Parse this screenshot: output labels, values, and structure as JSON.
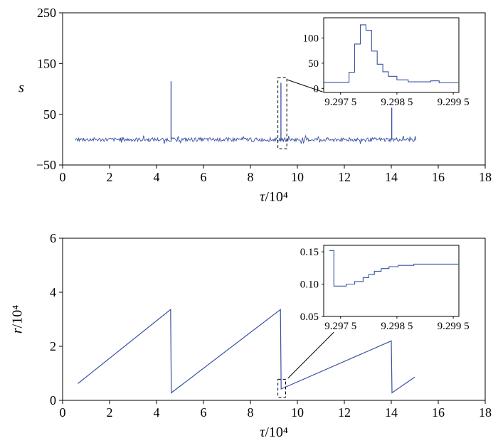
{
  "figure": {
    "background": "#ffffff",
    "line_color": "#3952a3",
    "axis_color": "#000000",
    "annotation_color": "#000000"
  },
  "chart_data": [
    {
      "id": "top-panel",
      "type": "line",
      "title": "",
      "xlabel_var": "τ",
      "xlabel_rest": "/10⁴",
      "ylabel_var": "s",
      "ylabel_rest": "",
      "xlim": [
        0,
        18
      ],
      "ylim": [
        -50,
        250
      ],
      "xticks": [
        {
          "v": 0,
          "label": "0"
        },
        {
          "v": 2,
          "label": "2"
        },
        {
          "v": 4,
          "label": "4"
        },
        {
          "v": 6,
          "label": "6"
        },
        {
          "v": 8,
          "label": "8"
        },
        {
          "v": 10,
          "label": "10"
        },
        {
          "v": 12,
          "label": "12"
        },
        {
          "v": 14,
          "label": "14"
        },
        {
          "v": 16,
          "label": "16"
        },
        {
          "v": 18,
          "label": "18"
        }
      ],
      "yticks": [
        {
          "v": -50,
          "label": "−50"
        },
        {
          "v": 50,
          "label": "50"
        },
        {
          "v": 150,
          "label": "150"
        },
        {
          "v": 250,
          "label": "250"
        }
      ],
      "baseline": {
        "x_start": 0.55,
        "x_end": 15.05,
        "y": 0,
        "noise_amp": 3.8,
        "n_points": 460,
        "seed": 77
      },
      "spikes": [
        [
          4.62,
          115
        ],
        [
          9.3,
          112
        ],
        [
          14.02,
          63
        ]
      ],
      "highlight_box": {
        "x1": 9.17,
        "x2": 9.55,
        "y1": -18,
        "y2": 122
      },
      "callout_line": [
        [
          9.57,
          118
        ],
        [
          11.08,
          94
        ]
      ],
      "inset": {
        "xlim": [
          9.2972,
          9.2996
        ],
        "ylim": [
          -8,
          140
        ],
        "xticks": [
          {
            "v": 9.2975,
            "label": "9.297 5"
          },
          {
            "v": 9.2985,
            "label": "9.298 5"
          },
          {
            "v": 9.2995,
            "label": "9.299 5"
          }
        ],
        "yticks": [
          {
            "v": 0,
            "label": "0"
          },
          {
            "v": 50,
            "label": "50"
          },
          {
            "v": 100,
            "label": "100"
          }
        ],
        "points": [
          [
            9.2972,
            12
          ],
          [
            9.29765,
            12
          ],
          [
            9.29765,
            32
          ],
          [
            9.29775,
            32
          ],
          [
            9.29775,
            88
          ],
          [
            9.29785,
            88
          ],
          [
            9.29785,
            126
          ],
          [
            9.29795,
            126
          ],
          [
            9.29795,
            115
          ],
          [
            9.29805,
            115
          ],
          [
            9.29805,
            74
          ],
          [
            9.29815,
            74
          ],
          [
            9.29815,
            48
          ],
          [
            9.29825,
            48
          ],
          [
            9.29825,
            33
          ],
          [
            9.29835,
            33
          ],
          [
            9.29835,
            24
          ],
          [
            9.2985,
            24
          ],
          [
            9.2985,
            17
          ],
          [
            9.2987,
            17
          ],
          [
            9.2987,
            13
          ],
          [
            9.2991,
            13
          ],
          [
            9.2991,
            15
          ],
          [
            9.29925,
            15
          ],
          [
            9.29925,
            11
          ],
          [
            9.2996,
            11
          ]
        ]
      }
    },
    {
      "id": "bottom-panel",
      "type": "line",
      "title": "",
      "xlabel_var": "τ",
      "xlabel_rest": "/10⁴",
      "ylabel_var": "r",
      "ylabel_rest": "/10⁴",
      "xlim": [
        0,
        18
      ],
      "ylim": [
        0,
        6
      ],
      "xticks": [
        {
          "v": 0,
          "label": "0"
        },
        {
          "v": 2,
          "label": "2"
        },
        {
          "v": 4,
          "label": "4"
        },
        {
          "v": 6,
          "label": "6"
        },
        {
          "v": 8,
          "label": "8"
        },
        {
          "v": 10,
          "label": "10"
        },
        {
          "v": 12,
          "label": "12"
        },
        {
          "v": 14,
          "label": "14"
        },
        {
          "v": 16,
          "label": "16"
        },
        {
          "v": 18,
          "label": "18"
        }
      ],
      "yticks": [
        {
          "v": 0,
          "label": "0"
        },
        {
          "v": 2,
          "label": "2"
        },
        {
          "v": 4,
          "label": "4"
        },
        {
          "v": 6,
          "label": "6"
        }
      ],
      "series": [
        [
          0.65,
          0.62
        ],
        [
          4.6,
          3.36
        ],
        [
          4.63,
          0.28
        ],
        [
          9.28,
          3.36
        ],
        [
          9.31,
          0.42
        ],
        [
          14.0,
          2.2
        ],
        [
          14.03,
          0.28
        ],
        [
          15.0,
          0.86
        ]
      ],
      "highlight_box": {
        "x1": 9.17,
        "x2": 9.5,
        "y1": 0.12,
        "y2": 0.78
      },
      "callout_line": [
        [
          9.6,
          0.82
        ],
        [
          11.55,
          2.52
        ]
      ],
      "inset": {
        "xlim": [
          9.2972,
          9.2996
        ],
        "ylim": [
          0.05,
          0.16
        ],
        "xticks": [
          {
            "v": 9.2975,
            "label": "9.297 5"
          },
          {
            "v": 9.2985,
            "label": "9.298 5"
          },
          {
            "v": 9.2995,
            "label": "9.299 5"
          }
        ],
        "yticks": [
          {
            "v": 0.05,
            "label": "0.05"
          },
          {
            "v": 0.1,
            "label": "0.10"
          },
          {
            "v": 0.15,
            "label": "0.15"
          }
        ],
        "points": [
          [
            9.2973,
            0.152
          ],
          [
            9.29738,
            0.152
          ],
          [
            9.29738,
            0.097
          ],
          [
            9.2976,
            0.097
          ],
          [
            9.2976,
            0.1
          ],
          [
            9.29775,
            0.1
          ],
          [
            9.29775,
            0.104
          ],
          [
            9.2979,
            0.104
          ],
          [
            9.2979,
            0.11
          ],
          [
            9.298,
            0.11
          ],
          [
            9.298,
            0.115
          ],
          [
            9.2981,
            0.115
          ],
          [
            9.2981,
            0.12
          ],
          [
            9.29822,
            0.12
          ],
          [
            9.29822,
            0.124
          ],
          [
            9.29836,
            0.124
          ],
          [
            9.29836,
            0.127
          ],
          [
            9.29852,
            0.127
          ],
          [
            9.29852,
            0.129
          ],
          [
            9.2988,
            0.129
          ],
          [
            9.2988,
            0.131
          ],
          [
            9.2996,
            0.131
          ]
        ]
      }
    }
  ]
}
